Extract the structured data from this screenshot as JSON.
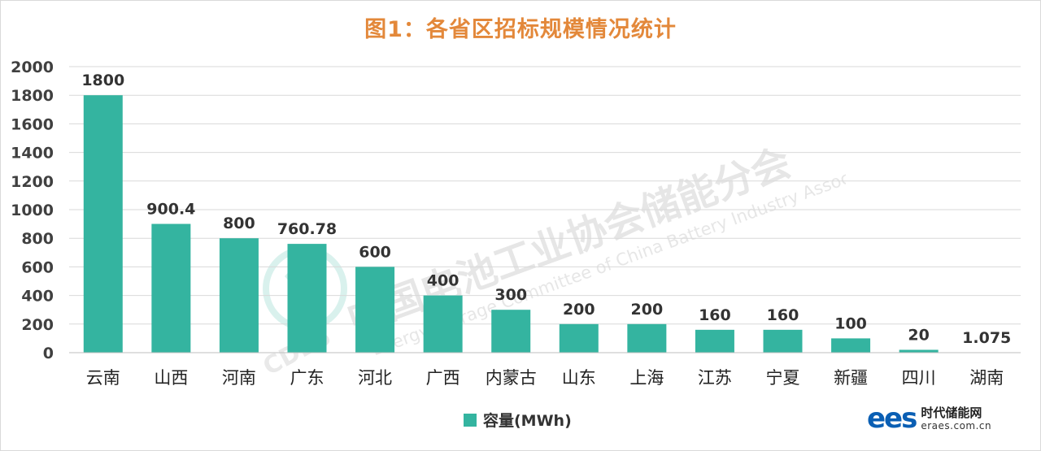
{
  "chart_data": {
    "type": "bar",
    "title": "图1：各省区招标规模情况统计",
    "categories": [
      "云南",
      "山西",
      "河南",
      "广东",
      "河北",
      "广西",
      "内蒙古",
      "山东",
      "上海",
      "江苏",
      "宁夏",
      "新疆",
      "四川",
      "湖南"
    ],
    "series": [
      {
        "name": "容量(MWh)",
        "values": [
          1800,
          900.4,
          800,
          760.78,
          600,
          400,
          300,
          200,
          200,
          160,
          160,
          100,
          20,
          1.075
        ],
        "data_labels": [
          "1800",
          "900.4",
          "800",
          "760.78",
          "600",
          "400",
          "300",
          "200",
          "200",
          "160",
          "160",
          "100",
          "20",
          "1.075"
        ]
      }
    ],
    "ylim": [
      0,
      2000
    ],
    "yticks": [
      0,
      200,
      400,
      600,
      800,
      1000,
      1200,
      1400,
      1600,
      1800,
      2000
    ],
    "grid": true,
    "legend": "bottom",
    "xlabel": "",
    "ylabel": ""
  },
  "colors": {
    "bar": "#34b4a0",
    "title": "#e3883a",
    "grid": "#d9d9d9"
  },
  "watermark": {
    "text_cn": "中国电池工业协会储能分会",
    "text_en": "Energy Storage Committee of China Battery Industry Association",
    "logo_text": "CDES"
  },
  "logo": {
    "mark": "ees",
    "name": "时代储能网",
    "url": "eraes.com.cn"
  }
}
